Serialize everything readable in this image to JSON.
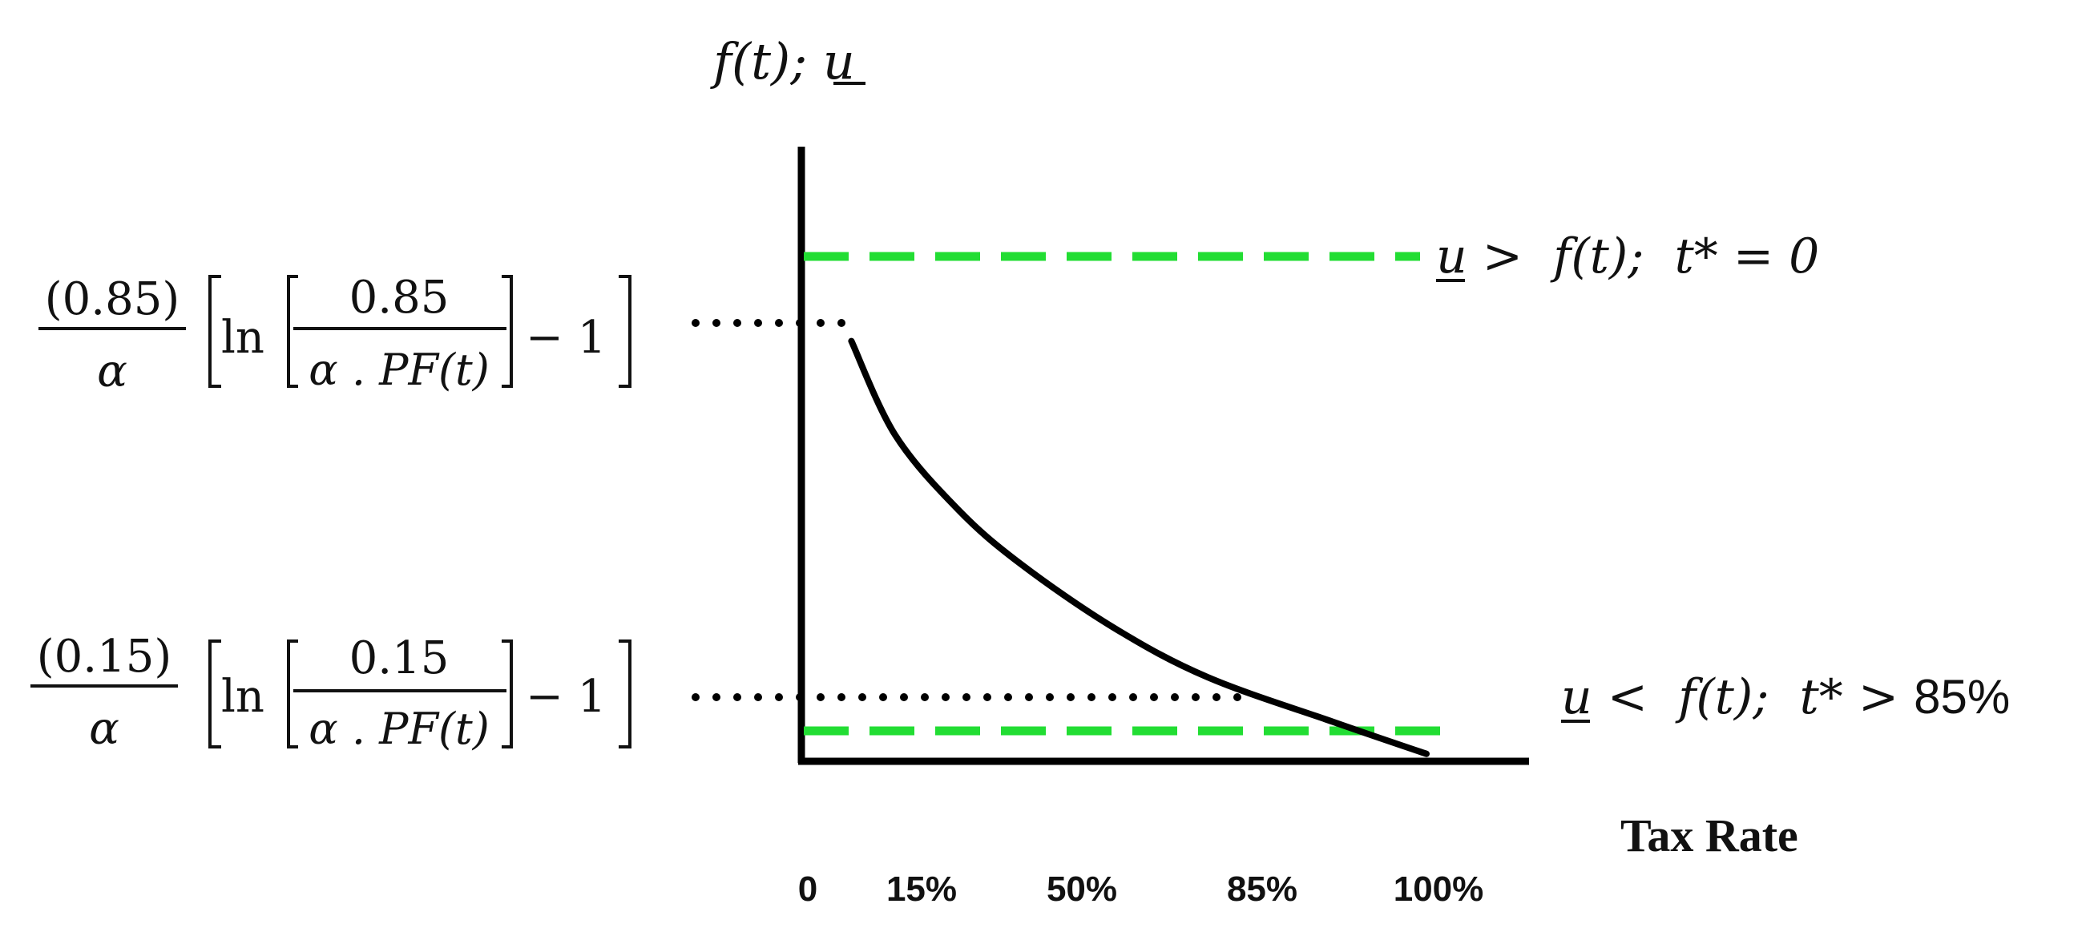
{
  "chart_data": {
    "type": "line",
    "y_axis_label": "f(t); u",
    "x_axis_label": "Tax Rate",
    "x_ticks": [
      "0",
      "15%",
      "50%",
      "85%",
      "100%"
    ],
    "upper_level_expression": {
      "numerator": "(0.85)",
      "denominator": "α",
      "ln": "ln",
      "inner_numerator": "0.85",
      "inner_denominator": "α . PF(t)",
      "minus_one": "− 1"
    },
    "lower_level_expression": {
      "numerator": "(0.15)",
      "denominator": "α",
      "ln": "ln",
      "inner_numerator": "0.15",
      "inner_denominator": "α . PF(t)",
      "minus_one": "− 1"
    },
    "upper_line_label": {
      "u": "u",
      "rest": " >  f(t);  t* = 0"
    },
    "lower_line_label": {
      "u": "u",
      "rest": " <  f(t);  t* > ",
      "pct": "85%"
    },
    "curve_points": [
      [
        0.08,
        0.85
      ],
      [
        0.15,
        0.66
      ],
      [
        0.25,
        0.51
      ],
      [
        0.35,
        0.4
      ],
      [
        0.5,
        0.27
      ],
      [
        0.65,
        0.17
      ],
      [
        0.85,
        0.08
      ],
      [
        1.0,
        0.015
      ]
    ],
    "threshold_lines": [
      0.9,
      0.05
    ],
    "colors": {
      "curve": "#000000",
      "axis": "#000000",
      "dashed": "#22dd33",
      "dots": "#000000"
    }
  }
}
